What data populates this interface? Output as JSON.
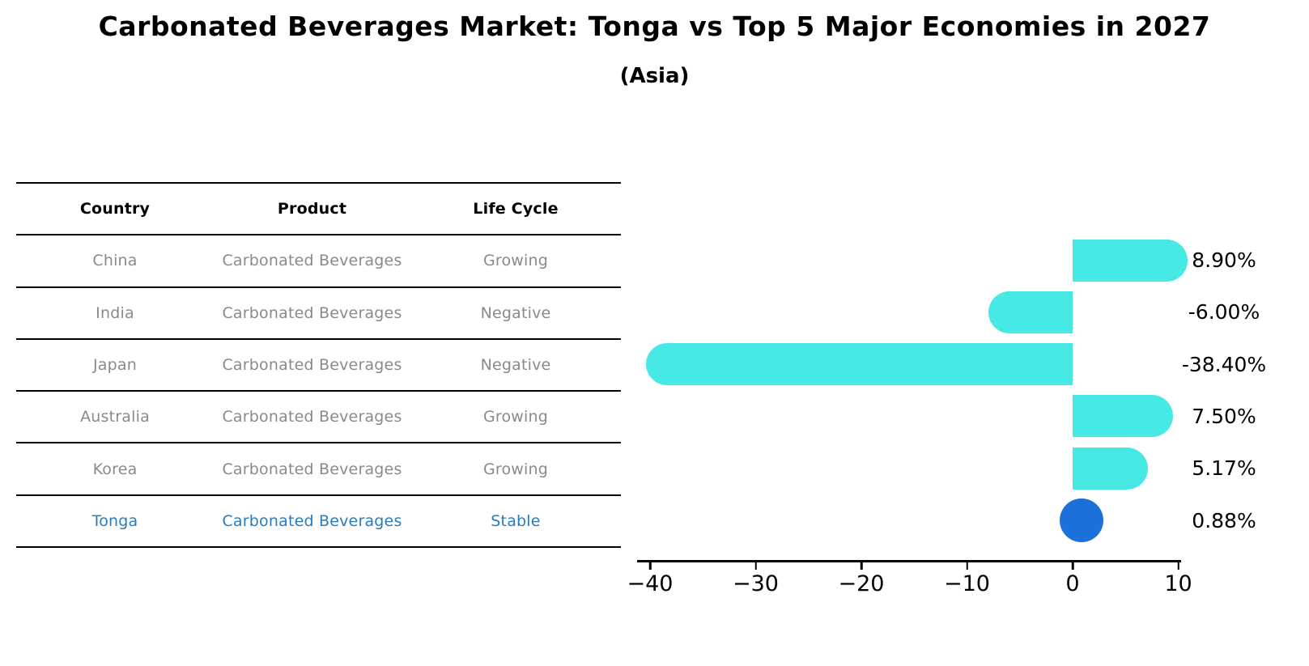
{
  "title": "Carbonated Beverages Market: Tonga vs Top 5 Major Economies in 2027",
  "subtitle": "(Asia)",
  "table": {
    "headers": [
      "Country",
      "Product",
      "Life Cycle"
    ],
    "rows": [
      {
        "country": "China",
        "product": "Carbonated Beverages",
        "life_cycle": "Growing",
        "highlight": false
      },
      {
        "country": "India",
        "product": "Carbonated Beverages",
        "life_cycle": "Negative",
        "highlight": false
      },
      {
        "country": "Japan",
        "product": "Carbonated Beverages",
        "life_cycle": "Negative",
        "highlight": false
      },
      {
        "country": "Australia",
        "product": "Carbonated Beverages",
        "life_cycle": "Growing",
        "highlight": false
      },
      {
        "country": "Korea",
        "product": "Carbonated Beverages",
        "life_cycle": "Growing",
        "highlight": false
      },
      {
        "country": "Tonga",
        "product": "Carbonated Beverages",
        "life_cycle": "Stable",
        "highlight": true
      }
    ]
  },
  "chart_data": {
    "type": "bar",
    "orientation": "horizontal",
    "categories": [
      "China",
      "India",
      "Japan",
      "Australia",
      "Korea",
      "Tonga"
    ],
    "values": [
      8.9,
      -6.0,
      -38.4,
      7.5,
      5.17,
      0.88
    ],
    "labels": [
      "8.90%",
      "-6.00%",
      "-38.40%",
      "7.50%",
      "5.17%",
      "0.88%"
    ],
    "xticks": [
      -40,
      -30,
      -20,
      -10,
      0,
      10
    ],
    "xtick_labels": [
      "−40",
      "−30",
      "−20",
      "−10",
      "0",
      "10"
    ],
    "xlim": [
      -41.2,
      10.3
    ],
    "grid": false,
    "legend": null,
    "title": "",
    "xlabel": "",
    "ylabel": "",
    "bar_color": "#47e9e5",
    "highlight_color": "#1c70db",
    "highlight_index": 5
  },
  "colors": {
    "bar": "#47e9e5",
    "highlight": "#1c70db",
    "highlight_text": "#2b7bba",
    "table_text": "#8a8a8a",
    "axis": "#000000",
    "background": "#ffffff"
  }
}
